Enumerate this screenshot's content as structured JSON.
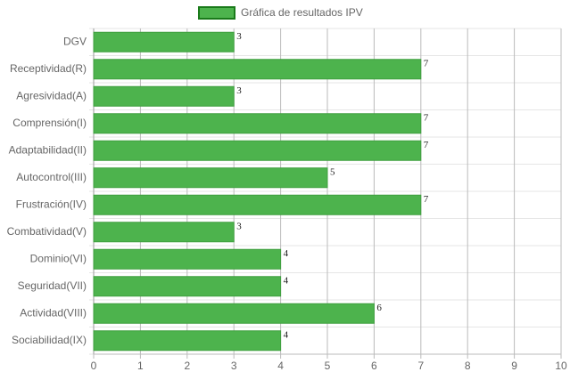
{
  "chart_data": {
    "type": "bar",
    "orientation": "horizontal",
    "categories": [
      "DGV",
      "Receptividad(R)",
      "Agresividad(A)",
      "Comprensión(I)",
      "Adaptabilidad(II)",
      "Autocontrol(III)",
      "Frustración(IV)",
      "Combatividad(V)",
      "Dominio(VI)",
      "Seguridad(VII)",
      "Actividad(VIII)",
      "Sociabilidad(IX)"
    ],
    "series": [
      {
        "name": "Gráfica de resultados IPV",
        "color": "#4db34d",
        "values": [
          3,
          7,
          3,
          7,
          7,
          5,
          7,
          3,
          4,
          4,
          6,
          4
        ]
      }
    ],
    "xlim": [
      0,
      10
    ],
    "xticks": [
      0,
      1,
      2,
      3,
      4,
      5,
      6,
      7,
      8,
      9,
      10
    ],
    "grid": true,
    "legend": "top"
  }
}
